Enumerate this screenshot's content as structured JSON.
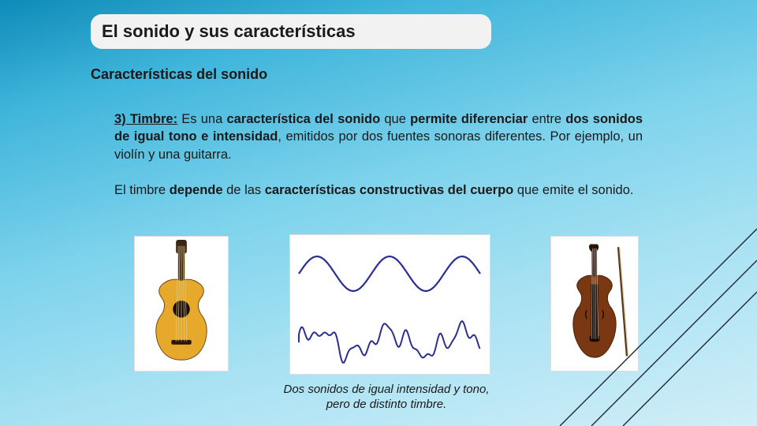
{
  "title": "El sonido y sus características",
  "subtitle": "Características del sonido",
  "paragraphs": {
    "p1": {
      "lead": "3) Timbre:",
      "seg1": " Es una ",
      "b1": "característica del sonido",
      "seg2": " que ",
      "b2": "permite diferenciar",
      "seg3": " entre ",
      "b3": "dos sonidos de igual tono e intensidad",
      "seg4": ", emitidos por dos fuentes sonoras diferentes. Por ejemplo, un violín y una guitarra."
    },
    "p2": {
      "seg1": "El timbre ",
      "b1": "depende",
      "seg2": " de las ",
      "b2": "características constructivas del cuerpo",
      "seg3": " que emite el sonido."
    }
  },
  "caption": {
    "line1": "Dos sonidos de igual intensidad y tono,",
    "line2": "pero de distinto timbre."
  },
  "images": {
    "guitar": {
      "name": "guitar",
      "body_color": "#e6a92b",
      "neck_color": "#3a2515",
      "hole_color": "#1a0f05"
    },
    "violin": {
      "name": "violin",
      "body_color": "#7a3812",
      "neck_color": "#2a1608"
    },
    "waves": {
      "name": "waveforms",
      "stroke": "#2b2f8f",
      "bg": "#ffffff",
      "sine": {
        "amplitude": 22,
        "cycles": 2.5
      },
      "complex": {
        "baseline": 135
      }
    }
  },
  "colors": {
    "title_bg": "#f2f2f2",
    "text": "#1a1a1a",
    "corner_line": "#1f2b3a"
  }
}
